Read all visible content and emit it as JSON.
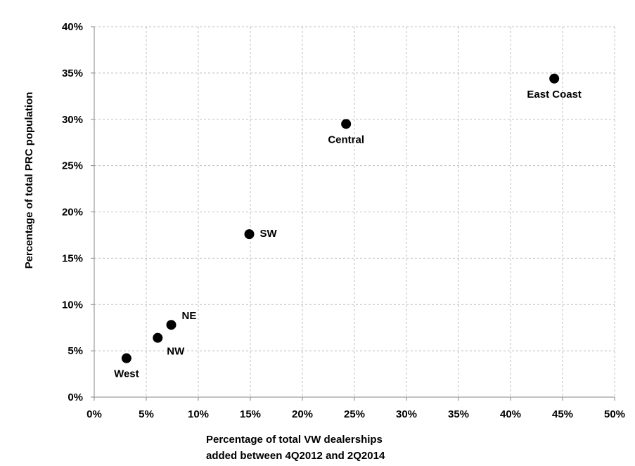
{
  "chart_data": {
    "type": "scatter",
    "xlabel_lines": [
      "Percentage of total VW dealerships",
      "added between 4Q2012 and 2Q2014"
    ],
    "ylabel": "Percentage of total PRC population",
    "xlim": [
      0,
      50
    ],
    "ylim": [
      0,
      40
    ],
    "x_ticks": [
      0,
      5,
      10,
      15,
      20,
      25,
      30,
      35,
      40,
      45,
      50
    ],
    "y_ticks": [
      0,
      5,
      10,
      15,
      20,
      25,
      30,
      35,
      40
    ],
    "x_tick_labels": [
      "0%",
      "5%",
      "10%",
      "15%",
      "20%",
      "25%",
      "30%",
      "35%",
      "40%",
      "45%",
      "50%"
    ],
    "y_tick_labels": [
      "0%",
      "5%",
      "10%",
      "15%",
      "20%",
      "25%",
      "30%",
      "35%",
      "40%"
    ],
    "grid": true,
    "marker_color": "#000000",
    "grid_color": "#bfbfbf",
    "points": [
      {
        "label": "West",
        "x": 3.1,
        "y": 4.2,
        "label_pos": "below"
      },
      {
        "label": "NW",
        "x": 6.1,
        "y": 6.4,
        "label_pos": "below-right"
      },
      {
        "label": "NE",
        "x": 7.4,
        "y": 7.8,
        "label_pos": "above-right"
      },
      {
        "label": "SW",
        "x": 14.9,
        "y": 17.6,
        "label_pos": "right"
      },
      {
        "label": "Central",
        "x": 24.2,
        "y": 29.5,
        "label_pos": "below"
      },
      {
        "label": "East Coast",
        "x": 44.2,
        "y": 34.4,
        "label_pos": "below"
      }
    ]
  }
}
